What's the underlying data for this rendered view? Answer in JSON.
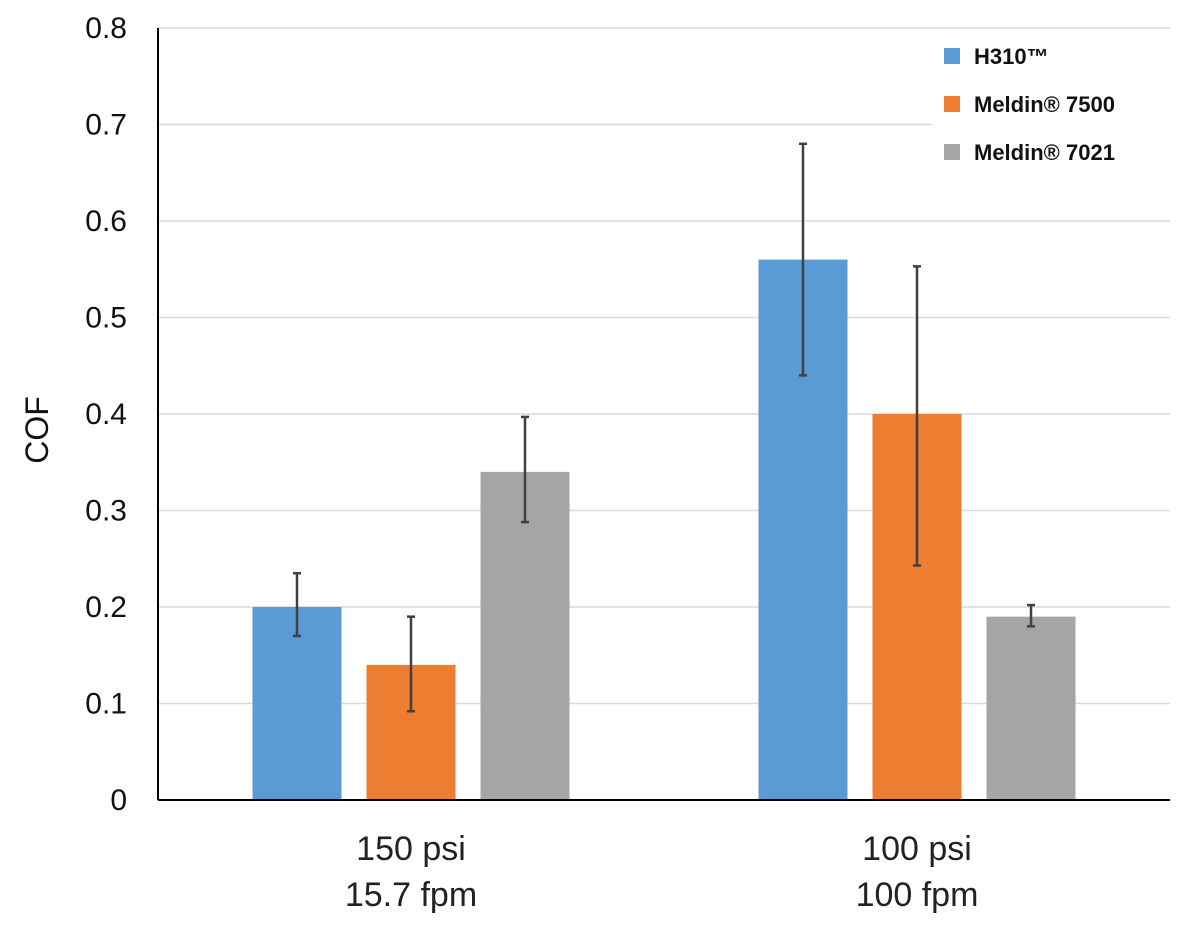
{
  "chart_data": {
    "type": "bar",
    "title": "",
    "xlabel": "",
    "ylabel": "COF",
    "ylim": [
      0,
      0.8
    ],
    "yticks": [
      "0",
      "0.1",
      "0.2",
      "0.3",
      "0.4",
      "0.5",
      "0.6",
      "0.7",
      "0.8"
    ],
    "grid": true,
    "legend_position": "top-right",
    "categories": [
      [
        "150 psi",
        "15.7 fpm"
      ],
      [
        "100 psi",
        "100 fpm"
      ]
    ],
    "series": [
      {
        "name": "H310™",
        "color": "#5b9bd5",
        "values": [
          0.2,
          0.56
        ],
        "errors": [
          [
            0.17,
            0.235
          ],
          [
            0.44,
            0.68
          ]
        ]
      },
      {
        "name": "Meldin® 7500",
        "color": "#ed7d31",
        "values": [
          0.14,
          0.4
        ],
        "errors": [
          [
            0.092,
            0.19
          ],
          [
            0.243,
            0.553
          ]
        ]
      },
      {
        "name": "Meldin® 7021",
        "color": "#a5a5a5",
        "values": [
          0.34,
          0.19
        ],
        "errors": [
          [
            0.288,
            0.397
          ],
          [
            0.18,
            0.202
          ]
        ]
      }
    ]
  }
}
